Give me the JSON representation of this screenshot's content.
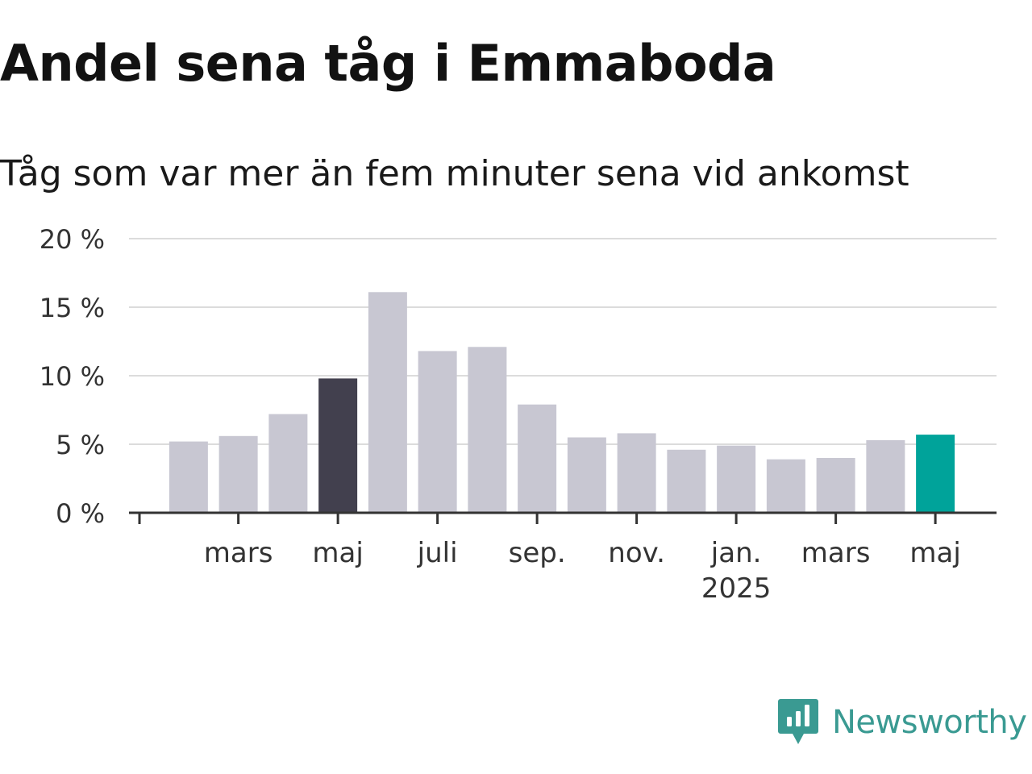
{
  "title": "Andel sena tåg i Emmaboda",
  "subtitle": "Tåg som var mer än fem minuter sena vid ankomst",
  "brand": {
    "name": "Newsworthy",
    "logo_icon": "bar-chart-speech-bubble-icon",
    "color": "#3a9a92"
  },
  "chart_data": {
    "type": "bar",
    "unit": "%",
    "categories": [
      "2024-02",
      "2024-03",
      "2024-04",
      "2024-05",
      "2024-06",
      "2024-07",
      "2024-08",
      "2024-09",
      "2024-10",
      "2024-11",
      "2024-12",
      "2025-01",
      "2025-02",
      "2025-03",
      "2025-04",
      "2025-05"
    ],
    "values": [
      5.2,
      5.6,
      7.2,
      9.8,
      16.1,
      11.8,
      12.1,
      7.9,
      5.5,
      5.8,
      4.6,
      4.9,
      3.9,
      4.0,
      5.3,
      5.7
    ],
    "highlight": [
      {
        "category": "2024-05",
        "color": "#42404e"
      },
      {
        "category": "2025-05",
        "color": "#00a39a"
      }
    ],
    "bar_color": "#c8c7d2",
    "ylim": [
      0,
      20
    ],
    "yticks": [
      "0 %",
      "5 %",
      "10 %",
      "15 %",
      "20 %"
    ],
    "ytick_values": [
      0,
      5,
      10,
      15,
      20
    ],
    "xticks": [
      {
        "category": "2024-03",
        "label": "mars"
      },
      {
        "category": "2024-05",
        "label": "maj"
      },
      {
        "category": "2024-07",
        "label": "juli"
      },
      {
        "category": "2024-09",
        "label": "sep."
      },
      {
        "category": "2024-11",
        "label": "nov."
      },
      {
        "category": "2025-01",
        "label": "jan.",
        "sublabel": "2025"
      },
      {
        "category": "2025-03",
        "label": "mars"
      },
      {
        "category": "2025-05",
        "label": "maj"
      }
    ],
    "grid": true,
    "legend": "none"
  }
}
